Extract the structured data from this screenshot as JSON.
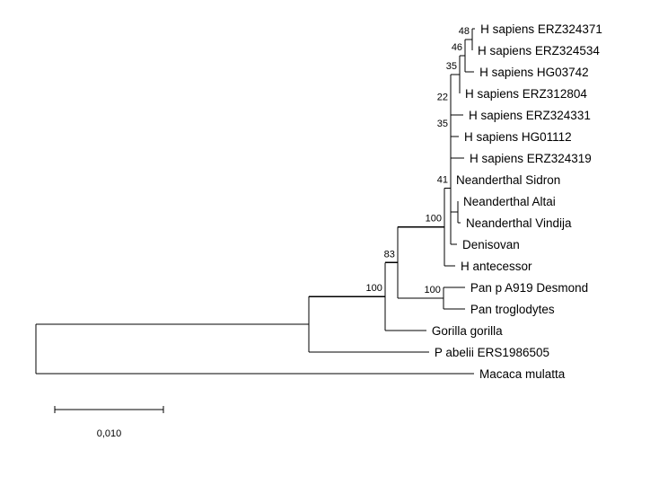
{
  "diagram": {
    "type": "phylogenetic-tree",
    "scale_bar": {
      "length": 0.01,
      "label": "0,010"
    },
    "leaf_order": [
      "H sapiens ERZ324371",
      "H sapiens ERZ324534",
      "H sapiens HG03742",
      "H sapiens ERZ312804",
      "H sapiens ERZ324331",
      "H sapiens HG01112",
      "H sapiens ERZ324319",
      "Neanderthal Sidron",
      "Neanderthal Altai",
      "Neanderthal Vindija",
      "Denisovan",
      "H antecessor",
      "Pan p A919 Desmond",
      "Pan troglodytes",
      "Gorilla gorilla",
      "P abelii ERS1986505",
      "Macaca mulatta"
    ],
    "tree": {
      "id": "root",
      "length": 0,
      "children": [
        {
          "id": "n_pongo_rest",
          "length": 0.02512,
          "children": [
            {
              "id": "n_100_gor",
              "support": "100",
              "length": 0.00702,
              "children": [
                {
                  "id": "n_83",
                  "support": "83",
                  "length": 0.00116,
                  "children": [
                    {
                      "id": "n_100_homo",
                      "support": "100",
                      "length": 0.0043,
                      "children": [
                        {
                          "id": "n_41",
                          "support": "41",
                          "length": 0.00058,
                          "children": [
                            {
                              "id": "n_35_nean",
                              "support": "35",
                              "length": 0.0,
                              "children": [
                                {
                                  "id": "n_22",
                                  "support": "22",
                                  "length": 0.0,
                                  "children": [
                                    {
                                      "id": "n_35_sap",
                                      "support": "35",
                                      "length": 0.00083,
                                      "children": [
                                        {
                                          "id": "n_46",
                                          "support": "46",
                                          "length": 0.0005,
                                          "children": [
                                            {
                                              "id": "n_48",
                                              "support": "48",
                                              "length": 0.00066,
                                              "children": [
                                                {
                                                  "name": "H sapiens ERZ324371",
                                                  "length": 0.00025
                                                },
                                                {
                                                  "name": "H sapiens ERZ324534",
                                                  "length": 0.0
                                                }
                                              ]
                                            },
                                            {
                                              "name": "H sapiens HG03742",
                                              "length": 0.00083
                                            }
                                          ]
                                        },
                                        {
                                          "name": "H sapiens ERZ312804",
                                          "length": 0.0
                                        }
                                      ]
                                    },
                                    {
                                      "name": "H sapiens ERZ324331",
                                      "length": 0.00116
                                    },
                                    {
                                      "name": "H sapiens HG01112",
                                      "length": 0.00075
                                    }
                                  ]
                                },
                                {
                                  "name": "H sapiens ERZ324319",
                                  "length": 0.00124
                                }
                              ]
                            },
                            {
                              "name": "Neanderthal Sidron",
                              "length": 0.0
                            },
                            {
                              "id": "n_nean_av",
                              "length": 0.00066,
                              "children": [
                                {
                                  "name": "Neanderthal Altai",
                                  "length": 0.0
                                },
                                {
                                  "name": "Neanderthal Vindija",
                                  "length": 0.00025
                                }
                              ]
                            },
                            {
                              "name": "Denisovan",
                              "length": 0.00058
                            }
                          ]
                        },
                        {
                          "name": "H antecessor",
                          "length": 0.00099
                        }
                      ]
                    },
                    {
                      "id": "n_100_pan",
                      "support": "100",
                      "length": 0.00421,
                      "children": [
                        {
                          "name": "Pan p A919 Desmond",
                          "length": 0.00198
                        },
                        {
                          "name": "Pan troglodytes",
                          "length": 0.00198
                        }
                      ]
                    }
                  ]
                },
                {
                  "name": "Gorilla gorilla",
                  "length": 0.0038
                }
              ]
            },
            {
              "name": "P abelii ERS1986505",
              "length": 0.01107
            }
          ]
        },
        {
          "name": "Macaca mulatta",
          "length": 0.04033
        }
      ]
    }
  }
}
